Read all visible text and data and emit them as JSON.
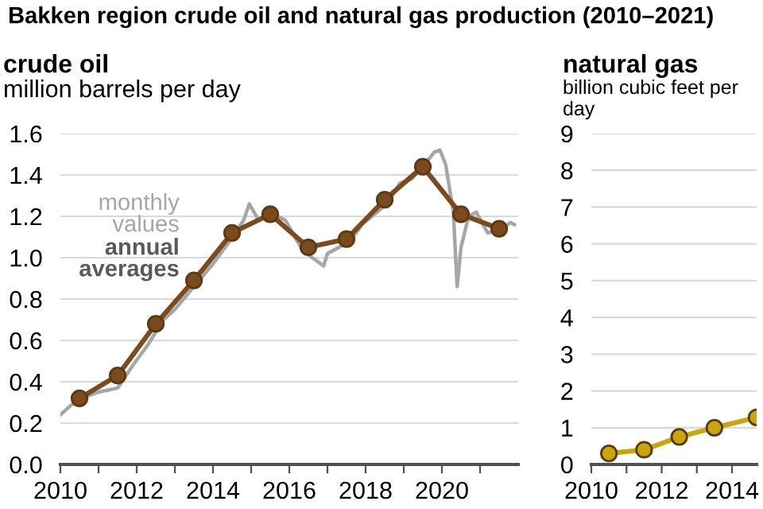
{
  "chart_data": [
    {
      "type": "line",
      "title": "Bakken region crude oil and natural gas production (2010–2021)",
      "subtitle": "crude oil",
      "ylabel": "million barrels per day",
      "xlim": [
        2010,
        2022
      ],
      "ylim": [
        0,
        1.6
      ],
      "yticks": [
        {
          "value": 0,
          "label": "0.0"
        },
        0.2,
        0.4,
        0.6,
        0.8,
        {
          "value": 1,
          "label": "1.0"
        },
        1.2,
        1.4,
        1.6
      ],
      "xticks": [
        2010,
        {
          "value": 2011,
          "label": null
        },
        2012,
        {
          "value": 2013,
          "label": null
        },
        2014,
        {
          "value": 2015,
          "label": null
        },
        2016,
        {
          "value": 2017,
          "label": null
        },
        2018,
        {
          "value": 2019,
          "label": null
        },
        2020,
        {
          "value": 2021,
          "label": null
        }
      ],
      "grid": "y",
      "legend": false,
      "series": [
        {
          "name": "monthly values",
          "color": "#a6a6a6",
          "marker": "none",
          "x": [
            2010.0,
            2010.3,
            2010.7,
            2011.0,
            2011.5,
            2011.9,
            2012.3,
            2012.7,
            2013.0,
            2013.5,
            2014.0,
            2014.4,
            2014.8,
            2014.95,
            2015.2,
            2015.5,
            2015.9,
            2016.3,
            2016.6,
            2016.9,
            2017.0,
            2017.3,
            2017.6,
            2017.9,
            2018.3,
            2018.6,
            2018.9,
            2019.2,
            2019.5,
            2019.8,
            2019.95,
            2020.1,
            2020.3,
            2020.4,
            2020.5,
            2020.7,
            2020.9,
            2021.2,
            2021.5,
            2021.8,
            2021.9
          ],
          "values": [
            0.24,
            0.29,
            0.33,
            0.35,
            0.37,
            0.48,
            0.58,
            0.7,
            0.75,
            0.86,
            0.97,
            1.07,
            1.18,
            1.26,
            1.18,
            1.22,
            1.18,
            1.05,
            1.0,
            0.96,
            1.02,
            1.05,
            1.08,
            1.16,
            1.22,
            1.27,
            1.36,
            1.38,
            1.44,
            1.51,
            1.52,
            1.45,
            1.22,
            0.86,
            1.05,
            1.2,
            1.22,
            1.12,
            1.13,
            1.17,
            1.16
          ]
        },
        {
          "name": "annual averages",
          "color": "#7b4a1e",
          "marker": "circle",
          "x": [
            2010.5,
            2011.5,
            2012.5,
            2013.5,
            2014.5,
            2015.5,
            2016.5,
            2017.5,
            2018.5,
            2019.5,
            2020.5,
            2021.5
          ],
          "values": [
            0.32,
            0.43,
            0.68,
            0.89,
            1.12,
            1.21,
            1.05,
            1.09,
            1.28,
            1.44,
            1.21,
            1.14
          ]
        }
      ]
    },
    {
      "type": "line",
      "subtitle": "natural gas",
      "ylabel": "billion cubic feet per day",
      "xlim": [
        2010,
        2014.7
      ],
      "ylim": [
        0,
        9
      ],
      "yticks": [
        0,
        1,
        2,
        3,
        4,
        5,
        6,
        7,
        8,
        9
      ],
      "xticks": [
        2010,
        {
          "value": 2011,
          "label": null
        },
        2012,
        {
          "value": 2013,
          "label": null
        },
        2014
      ],
      "grid": "y",
      "legend": false,
      "series": [
        {
          "color": "#c9a50f",
          "marker": "circle",
          "x": [
            2010.5,
            2011.5,
            2012.5,
            2013.5,
            2014.7
          ],
          "values": [
            0.3,
            0.4,
            0.75,
            1.0,
            1.28
          ]
        }
      ]
    }
  ]
}
